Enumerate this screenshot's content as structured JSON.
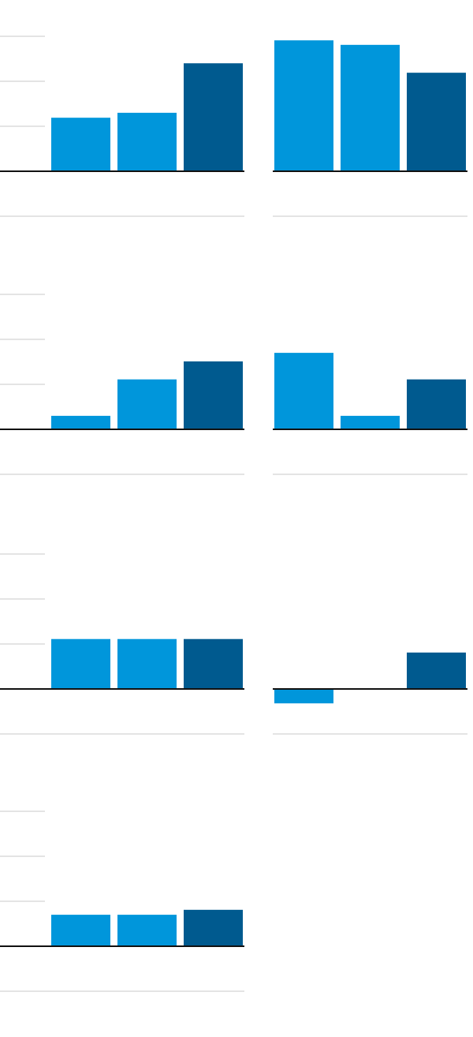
{
  "chart_data": [
    {
      "type": "bar",
      "values": [
        1.19,
        1.3,
        2.4
      ],
      "colors": [
        "#0096db",
        "#0096db",
        "#005a8f"
      ],
      "ylim": [
        -1,
        3
      ],
      "yticks": [
        1,
        2,
        3
      ],
      "grid": true
    },
    {
      "type": "bar",
      "values": [
        2.91,
        2.81,
        2.19
      ],
      "colors": [
        "#0096db",
        "#0096db",
        "#005a8f"
      ],
      "ylim": [
        -1,
        3
      ],
      "yticks": [
        1,
        2,
        3
      ],
      "grid": false
    },
    {
      "type": "bar",
      "values": [
        0.3,
        1.11,
        1.51
      ],
      "colors": [
        "#0096db",
        "#0096db",
        "#005a8f"
      ],
      "ylim": [
        -1,
        3
      ],
      "yticks": [
        1,
        2,
        3
      ],
      "grid": true
    },
    {
      "type": "bar",
      "values": [
        1.7,
        0.3,
        1.11
      ],
      "colors": [
        "#0096db",
        "#0096db",
        "#005a8f"
      ],
      "ylim": [
        -1,
        3
      ],
      "yticks": [
        1,
        2,
        3
      ],
      "grid": false
    },
    {
      "type": "bar",
      "values": [
        1.11,
        1.11,
        1.11
      ],
      "colors": [
        "#0096db",
        "#0096db",
        "#005a8f"
      ],
      "ylim": [
        -1,
        3
      ],
      "yticks": [
        1,
        2,
        3
      ],
      "grid": true
    },
    {
      "type": "bar",
      "values": [
        -0.32,
        0,
        0.81
      ],
      "colors": [
        "#0096db",
        "#0096db",
        "#005a8f"
      ],
      "ylim": [
        -1,
        3
      ],
      "yticks": [
        1,
        2,
        3
      ],
      "grid": false
    },
    {
      "type": "bar",
      "values": [
        0.7,
        0.7,
        0.81
      ],
      "colors": [
        "#0096db",
        "#0096db",
        "#005a8f"
      ],
      "ylim": [
        -1,
        3
      ],
      "yticks": [
        1,
        2,
        3
      ],
      "grid": true
    }
  ]
}
